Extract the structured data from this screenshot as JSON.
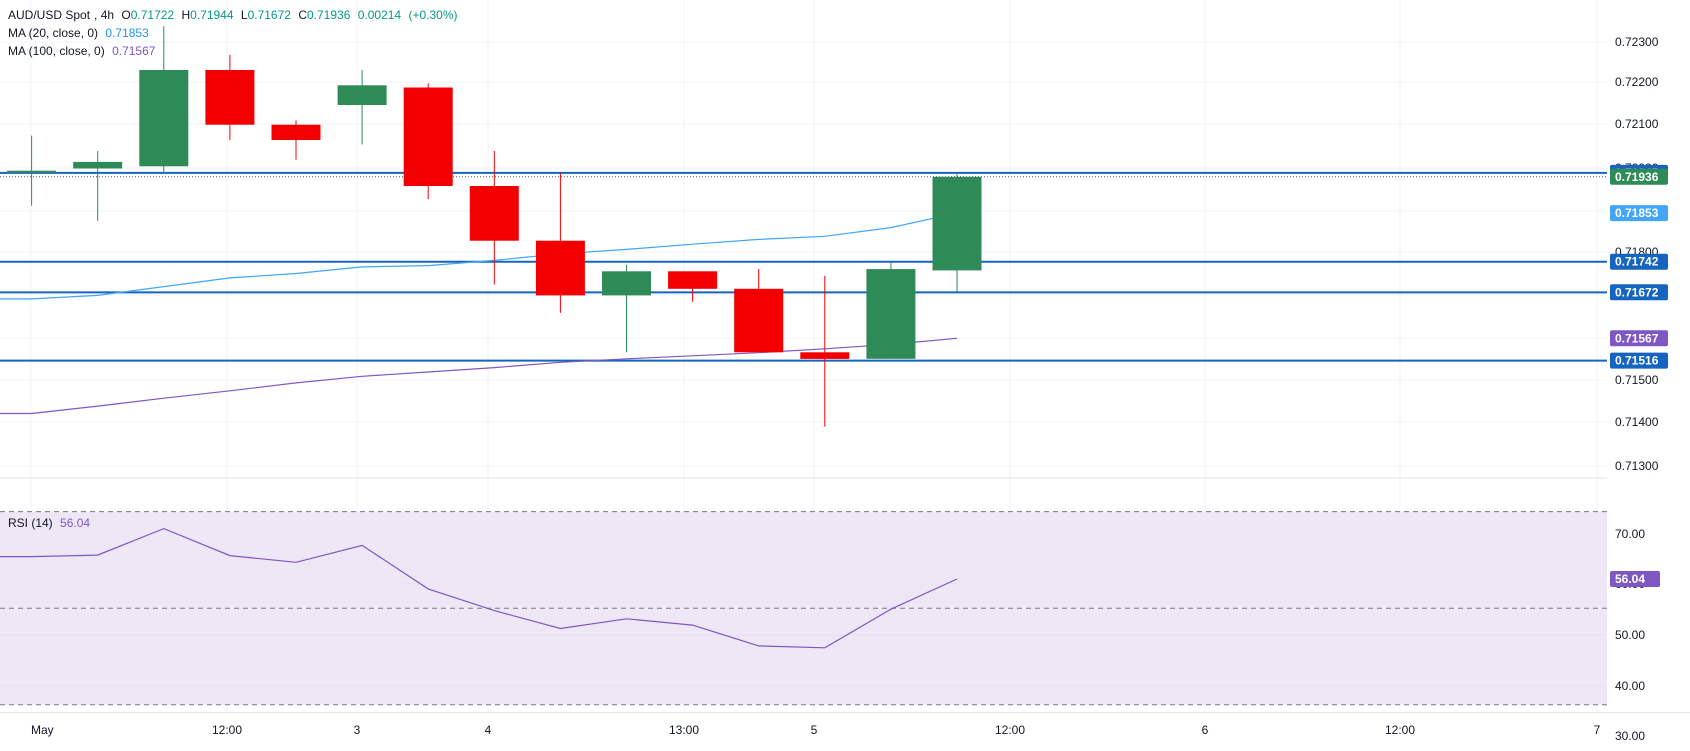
{
  "legend": {
    "symbol": "AUD/USD Spot",
    "timeframe": "4h",
    "open_label": "O",
    "open": "0.71722",
    "high_label": "H",
    "high": "0.71944",
    "low_label": "L",
    "low": "0.71672",
    "close_label": "C",
    "close": "0.71936",
    "change": "0.00214",
    "change_pct": "(+0.30%)",
    "ma20_label": "MA (20, close, 0)",
    "ma20_value": "0.71853",
    "ma100_label": "MA (100, close, 0)",
    "ma100_value": "0.71567",
    "rsi_label": "RSI (14)",
    "rsi_value": "56.04"
  },
  "colors": {
    "up": "#2e8b57",
    "down": "#f20000",
    "ma20": "#42a5f5",
    "ma100": "#7e57c2",
    "hline": "#1565c0",
    "rsi_band": "#ede7f6",
    "rsi_line": "#7e57c2",
    "axis_text": "#131722",
    "grid": "#f0f3fa"
  },
  "chart_data": [
    {
      "type": "candlestick",
      "title": "AUD/USD Spot, 4h",
      "x_tick_labels": [
        "May",
        "12:00",
        "3",
        "4",
        "13:00",
        "5",
        "12:00",
        "6",
        "12:00",
        "7"
      ],
      "y_tick_labels": [
        "0.72300",
        "0.72200",
        "0.72100",
        "0.72000",
        "0.71900",
        "0.71800",
        "0.71700",
        "0.71600",
        "0.71500",
        "0.71400",
        "0.71300"
      ],
      "ylim": [
        0.7125,
        0.7234
      ],
      "candles": [
        {
          "open": 0.7195,
          "high": 0.7203,
          "low": 0.7187,
          "close": 0.7195
        },
        {
          "open": 0.71955,
          "high": 0.71995,
          "low": 0.71835,
          "close": 0.7197
        },
        {
          "open": 0.7196,
          "high": 0.7228,
          "low": 0.71945,
          "close": 0.7218
        },
        {
          "open": 0.7218,
          "high": 0.72215,
          "low": 0.7202,
          "close": 0.72055
        },
        {
          "open": 0.72055,
          "high": 0.72065,
          "low": 0.71975,
          "close": 0.7202
        },
        {
          "open": 0.721,
          "high": 0.7218,
          "low": 0.7201,
          "close": 0.72145
        },
        {
          "open": 0.7214,
          "high": 0.7215,
          "low": 0.71885,
          "close": 0.71915
        },
        {
          "open": 0.71915,
          "high": 0.71995,
          "low": 0.7169,
          "close": 0.7179
        },
        {
          "open": 0.7179,
          "high": 0.71945,
          "low": 0.71625,
          "close": 0.71665
        },
        {
          "open": 0.71665,
          "high": 0.71735,
          "low": 0.71535,
          "close": 0.7172
        },
        {
          "open": 0.7172,
          "high": 0.7172,
          "low": 0.7165,
          "close": 0.7168
        },
        {
          "open": 0.7168,
          "high": 0.71725,
          "low": 0.71535,
          "close": 0.71535
        },
        {
          "open": 0.71535,
          "high": 0.7171,
          "low": 0.71365,
          "close": 0.7152
        },
        {
          "open": 0.7152,
          "high": 0.7174,
          "low": 0.7152,
          "close": 0.71725
        },
        {
          "open": 0.71722,
          "high": 0.71944,
          "low": 0.71672,
          "close": 0.71936
        }
      ],
      "series": [
        {
          "name": "MA (20, close, 0)",
          "values": [
            0.71657,
            0.71665,
            0.71685,
            0.71705,
            0.71715,
            0.7173,
            0.71733,
            0.71745,
            0.7176,
            0.7177,
            0.71782,
            0.71793,
            0.718,
            0.7182,
            0.71853
          ]
        },
        {
          "name": "MA (100, close, 0)",
          "values": [
            0.71395,
            0.71412,
            0.7143,
            0.71447,
            0.71465,
            0.7148,
            0.7149,
            0.715,
            0.71512,
            0.7152,
            0.71527,
            0.71534,
            0.71543,
            0.71553,
            0.71567
          ]
        }
      ],
      "horizontal_lines": [
        0.71945,
        0.71742,
        0.71672,
        0.71516
      ],
      "price_labels": [
        {
          "text": "0.71945",
          "value": 0.71945,
          "kind": "line"
        },
        {
          "text": "0.71936",
          "value": 0.71936,
          "kind": "close"
        },
        {
          "text": "0.71853",
          "value": 0.71853,
          "kind": "ma20"
        },
        {
          "text": "0.71742",
          "value": 0.71742,
          "kind": "line"
        },
        {
          "text": "0.71672",
          "value": 0.71672,
          "kind": "line"
        },
        {
          "text": "0.71567",
          "value": 0.71567,
          "kind": "ma100"
        },
        {
          "text": "0.71516",
          "value": 0.71516,
          "kind": "line"
        }
      ]
    },
    {
      "type": "line",
      "title": "RSI (14)",
      "y_tick_labels": [
        "70.00",
        "60.00",
        "50.00",
        "40.00",
        "30.00"
      ],
      "ylim": [
        28.5,
        72.0
      ],
      "band": [
        30,
        70
      ],
      "dashed_levels": [
        70,
        50,
        30
      ],
      "values": [
        60.7,
        61.0,
        66.5,
        60.9,
        59.5,
        63.0,
        54.0,
        49.5,
        45.8,
        47.8,
        46.5,
        42.2,
        41.8,
        49.8,
        56.04
      ],
      "current_label": "56.04"
    }
  ]
}
